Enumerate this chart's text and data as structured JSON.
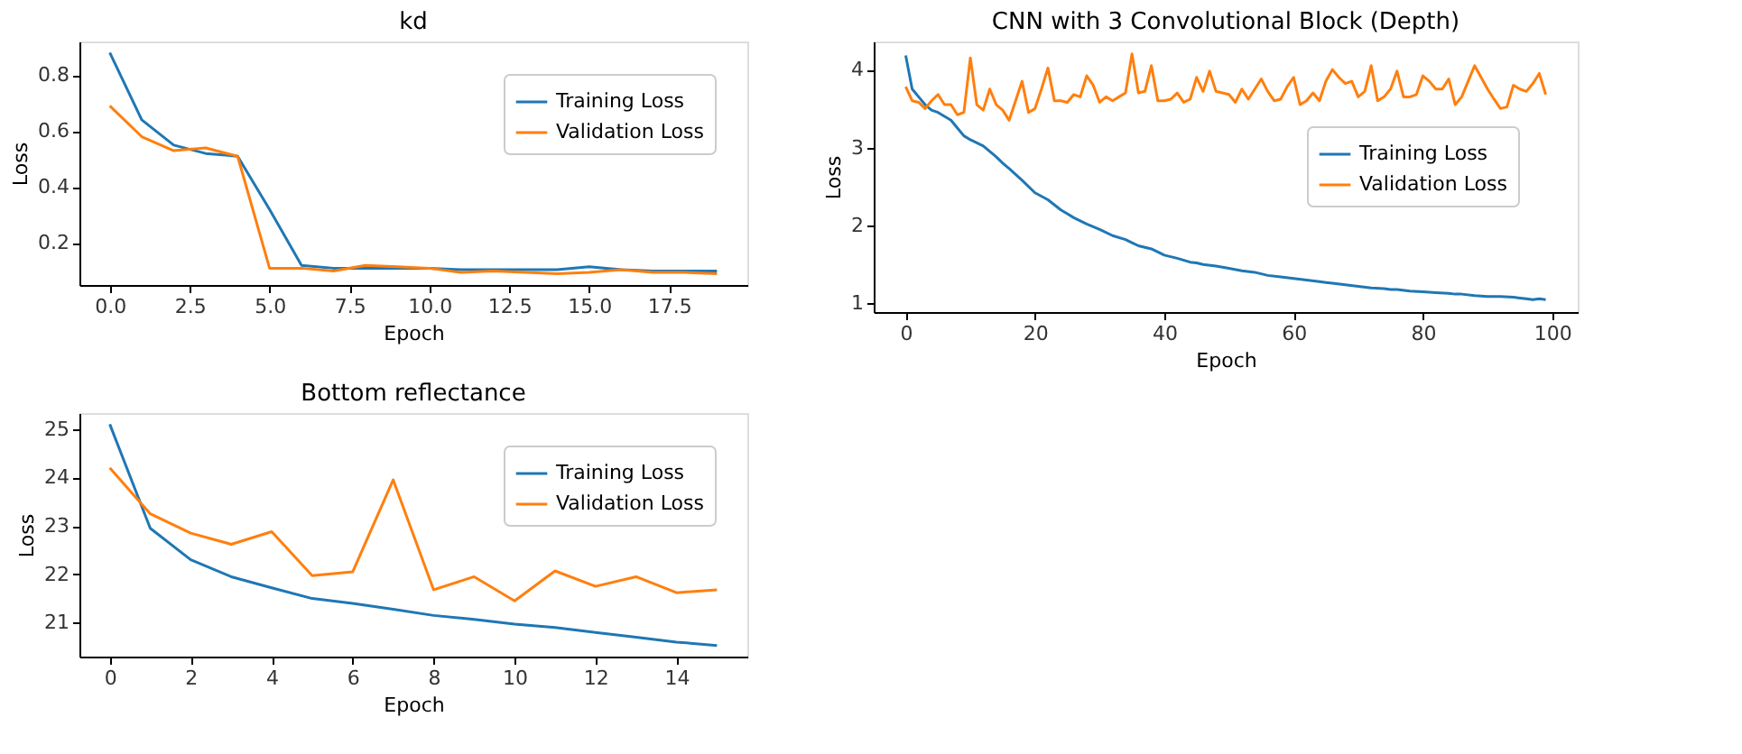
{
  "chart_data": [
    {
      "type": "line",
      "title": "kd",
      "xlabel": "Epoch",
      "ylabel": "Loss",
      "grid": false,
      "legend": "top right",
      "x": [
        0,
        1,
        2,
        3,
        4,
        5,
        6,
        7,
        8,
        9,
        10,
        11,
        12,
        13,
        14,
        15,
        16,
        17,
        18,
        19
      ],
      "xlim": [
        -0.95,
        19.95
      ],
      "ylim": [
        0.05,
        0.92
      ],
      "xticks": [
        {
          "value": 0,
          "label": "0.0"
        },
        {
          "value": 2.5,
          "label": "2.5"
        },
        {
          "value": 5,
          "label": "5.0"
        },
        {
          "value": 7.5,
          "label": "7.5"
        },
        {
          "value": 10,
          "label": "10.0"
        },
        {
          "value": 12.5,
          "label": "12.5"
        },
        {
          "value": 15,
          "label": "15.0"
        },
        {
          "value": 17.5,
          "label": "17.5"
        }
      ],
      "yticks": [
        0.2,
        0.4,
        0.6,
        0.8
      ],
      "series": [
        {
          "name": "Training Loss",
          "color": "#1f77b4",
          "values": [
            0.88,
            0.64,
            0.55,
            0.52,
            0.51,
            0.32,
            0.12,
            0.11,
            0.11,
            0.11,
            0.11,
            0.105,
            0.105,
            0.105,
            0.105,
            0.115,
            0.105,
            0.1,
            0.1,
            0.1
          ]
        },
        {
          "name": "Validation Loss",
          "color": "#ff7f0e",
          "values": [
            0.69,
            0.58,
            0.53,
            0.54,
            0.51,
            0.11,
            0.11,
            0.1,
            0.12,
            0.115,
            0.11,
            0.095,
            0.1,
            0.095,
            0.09,
            0.095,
            0.105,
            0.095,
            0.095,
            0.09
          ]
        }
      ]
    },
    {
      "type": "line",
      "title": "Bottom reflectance",
      "xlabel": "Epoch",
      "ylabel": "Loss",
      "grid": false,
      "legend": "top right",
      "x": [
        0,
        1,
        2,
        3,
        4,
        5,
        6,
        7,
        8,
        9,
        10,
        11,
        12,
        13,
        14,
        15
      ],
      "xlim": [
        -0.75,
        15.75
      ],
      "ylim": [
        20.3,
        25.33
      ],
      "xticks": [
        0,
        2,
        4,
        6,
        8,
        10,
        12,
        14
      ],
      "yticks": [
        21,
        22,
        23,
        24,
        25
      ],
      "series": [
        {
          "name": "Training Loss",
          "color": "#1f77b4",
          "values": [
            25.1,
            22.95,
            22.3,
            21.95,
            21.72,
            21.5,
            21.4,
            21.28,
            21.15,
            21.07,
            20.97,
            20.9,
            20.8,
            20.7,
            20.6,
            20.53
          ]
        },
        {
          "name": "Validation Loss",
          "color": "#ff7f0e",
          "values": [
            24.2,
            23.25,
            22.85,
            22.62,
            22.88,
            21.97,
            22.05,
            23.95,
            21.68,
            21.95,
            21.45,
            22.07,
            21.75,
            21.95,
            21.62,
            21.68
          ]
        }
      ]
    },
    {
      "type": "line",
      "title": "CNN with 3 Convolutional Block (Depth)",
      "xlabel": "Epoch",
      "ylabel": "Loss",
      "grid": false,
      "legend": "right",
      "xlim": [
        -4.95,
        103.95
      ],
      "ylim": [
        0.89,
        4.36
      ],
      "xticks": [
        0,
        20,
        40,
        60,
        80,
        100
      ],
      "yticks": [
        1,
        2,
        3,
        4
      ],
      "series": [
        {
          "name": "Training Loss",
          "color": "#1f77b4",
          "x": [
            0,
            1,
            2,
            3,
            4,
            5,
            6,
            7,
            8,
            9,
            10,
            12,
            14,
            15,
            16,
            18,
            20,
            22,
            24,
            25,
            26,
            28,
            30,
            32,
            34,
            35,
            36,
            38,
            40,
            42,
            44,
            45,
            46,
            48,
            50,
            52,
            54,
            55,
            56,
            58,
            60,
            62,
            64,
            65,
            66,
            68,
            70,
            72,
            74,
            75,
            76,
            78,
            80,
            82,
            84,
            85,
            86,
            88,
            90,
            92,
            94,
            95,
            96,
            97,
            98,
            99
          ],
          "values": [
            4.18,
            3.75,
            3.65,
            3.55,
            3.48,
            3.45,
            3.4,
            3.35,
            3.25,
            3.15,
            3.1,
            3.02,
            2.88,
            2.8,
            2.73,
            2.58,
            2.42,
            2.33,
            2.2,
            2.15,
            2.1,
            2.02,
            1.95,
            1.87,
            1.82,
            1.78,
            1.74,
            1.7,
            1.62,
            1.58,
            1.53,
            1.52,
            1.5,
            1.48,
            1.45,
            1.42,
            1.4,
            1.38,
            1.36,
            1.34,
            1.32,
            1.3,
            1.28,
            1.27,
            1.26,
            1.24,
            1.22,
            1.2,
            1.19,
            1.18,
            1.18,
            1.16,
            1.15,
            1.14,
            1.13,
            1.12,
            1.12,
            1.1,
            1.09,
            1.09,
            1.08,
            1.07,
            1.06,
            1.05,
            1.06,
            1.05
          ]
        },
        {
          "name": "Validation Loss",
          "color": "#ff7f0e",
          "x": [
            0,
            1,
            2,
            3,
            4,
            5,
            6,
            7,
            8,
            9,
            10,
            11,
            12,
            13,
            14,
            15,
            16,
            17,
            18,
            19,
            20,
            21,
            22,
            23,
            24,
            25,
            26,
            27,
            28,
            29,
            30,
            31,
            32,
            33,
            34,
            35,
            36,
            37,
            38,
            39,
            40,
            41,
            42,
            43,
            44,
            45,
            46,
            47,
            48,
            49,
            50,
            51,
            52,
            53,
            54,
            55,
            56,
            57,
            58,
            59,
            60,
            61,
            62,
            63,
            64,
            65,
            66,
            67,
            68,
            69,
            70,
            71,
            72,
            73,
            74,
            75,
            76,
            77,
            78,
            79,
            80,
            81,
            82,
            83,
            84,
            85,
            86,
            87,
            88,
            89,
            90,
            91,
            92,
            93,
            94,
            95,
            96,
            97,
            98,
            99
          ],
          "values": [
            3.78,
            3.6,
            3.58,
            3.5,
            3.6,
            3.68,
            3.55,
            3.55,
            3.42,
            3.45,
            4.15,
            3.55,
            3.48,
            3.75,
            3.55,
            3.48,
            3.35,
            3.6,
            3.85,
            3.45,
            3.5,
            3.75,
            4.02,
            3.6,
            3.6,
            3.58,
            3.68,
            3.65,
            3.92,
            3.8,
            3.58,
            3.65,
            3.6,
            3.65,
            3.7,
            4.2,
            3.7,
            3.72,
            4.05,
            3.6,
            3.6,
            3.62,
            3.7,
            3.58,
            3.62,
            3.9,
            3.72,
            3.98,
            3.72,
            3.7,
            3.68,
            3.58,
            3.75,
            3.62,
            3.75,
            3.88,
            3.72,
            3.6,
            3.62,
            3.78,
            3.9,
            3.55,
            3.6,
            3.7,
            3.6,
            3.85,
            4.0,
            3.9,
            3.82,
            3.85,
            3.65,
            3.72,
            4.05,
            3.6,
            3.65,
            3.75,
            3.98,
            3.65,
            3.65,
            3.68,
            3.92,
            3.85,
            3.75,
            3.75,
            3.88,
            3.55,
            3.65,
            3.85,
            4.05,
            3.9,
            3.75,
            3.62,
            3.5,
            3.52,
            3.8,
            3.75,
            3.72,
            3.82,
            3.95,
            3.68
          ]
        }
      ]
    }
  ]
}
